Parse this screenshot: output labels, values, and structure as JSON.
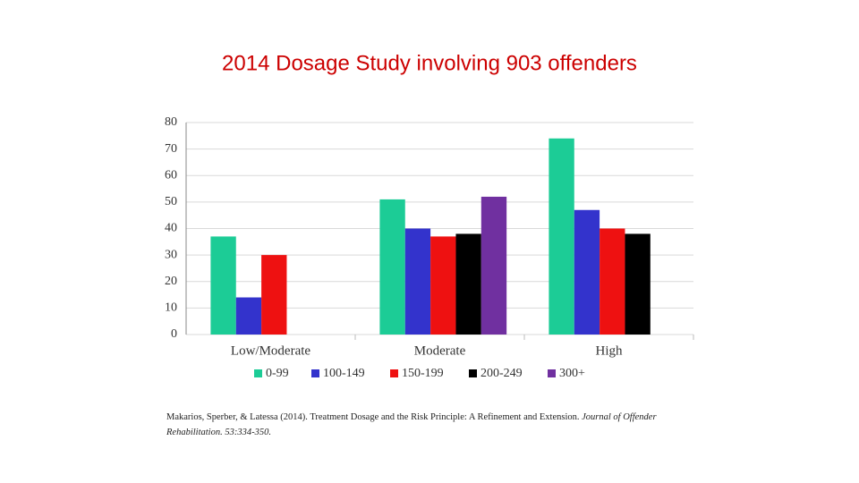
{
  "chart_data": {
    "type": "bar",
    "title": "2014 Dosage  Study involving 903 offenders",
    "categories": [
      "Low/Moderate",
      "Moderate",
      "High"
    ],
    "series": [
      {
        "name": "0-99",
        "color": "#1ccc96",
        "values": [
          37,
          51,
          74
        ]
      },
      {
        "name": "100-149",
        "color": "#3333cc",
        "values": [
          14,
          40,
          47
        ]
      },
      {
        "name": "150-199",
        "color": "#ee1111",
        "values": [
          30,
          37,
          40
        ]
      },
      {
        "name": "200-249",
        "color": "#000000",
        "values": [
          null,
          38,
          38
        ]
      },
      {
        "name": "300+",
        "color": "#7030a0",
        "values": [
          null,
          52,
          null
        ]
      }
    ],
    "ylim": [
      0,
      80
    ],
    "yticks": [
      0,
      10,
      20,
      30,
      40,
      50,
      60,
      70,
      80
    ],
    "grid": true,
    "footnote": [
      "Makarios, Sperber, & Latessa (2014).  Treatment Dosage and the Risk Principle:  A Refinement and Extension.",
      "Journal of Offender Rehabilitation.   53:334-350."
    ]
  }
}
